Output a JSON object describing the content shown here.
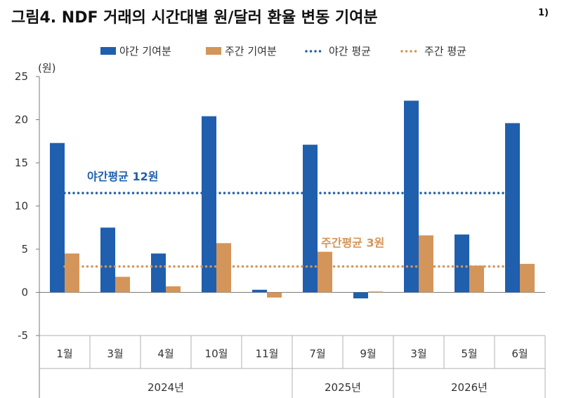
{
  "title": "그림4. NDF 거래의 시간대별 원/달러 환율 변동 기여분",
  "title_superscript": "1)",
  "chart_data": {
    "type": "bar",
    "unit_label": "(원)",
    "ylim": [
      -5,
      25
    ],
    "yticks": [
      -5,
      0,
      5,
      10,
      15,
      20,
      25
    ],
    "grid": false,
    "legend_position": "top",
    "categories": [
      "1월",
      "3월",
      "4월",
      "10월",
      "11월",
      "7월",
      "9월",
      "3월",
      "5월",
      "6월"
    ],
    "year_groups": [
      {
        "label": "2024년",
        "count": 5
      },
      {
        "label": "2025년",
        "count": 2
      },
      {
        "label": "2026년",
        "count": 3
      }
    ],
    "series": [
      {
        "name": "야간 기여분",
        "color": "#1f5fad",
        "values": [
          17.3,
          7.5,
          4.5,
          20.4,
          0.3,
          17.1,
          -0.7,
          22.2,
          6.7,
          19.6
        ]
      },
      {
        "name": "주간 기여분",
        "color": "#d4955a",
        "values": [
          4.5,
          1.8,
          0.7,
          5.7,
          -0.6,
          4.7,
          0.1,
          6.6,
          3.1,
          3.3
        ]
      }
    ],
    "averages": [
      {
        "legend": "야간 평균",
        "label": "야간평균 12원",
        "value": 11.5,
        "color": "#1f5fad"
      },
      {
        "legend": "주간 평균",
        "label": "주간평균 3원",
        "value": 3.0,
        "color": "#d4955a"
      }
    ]
  }
}
